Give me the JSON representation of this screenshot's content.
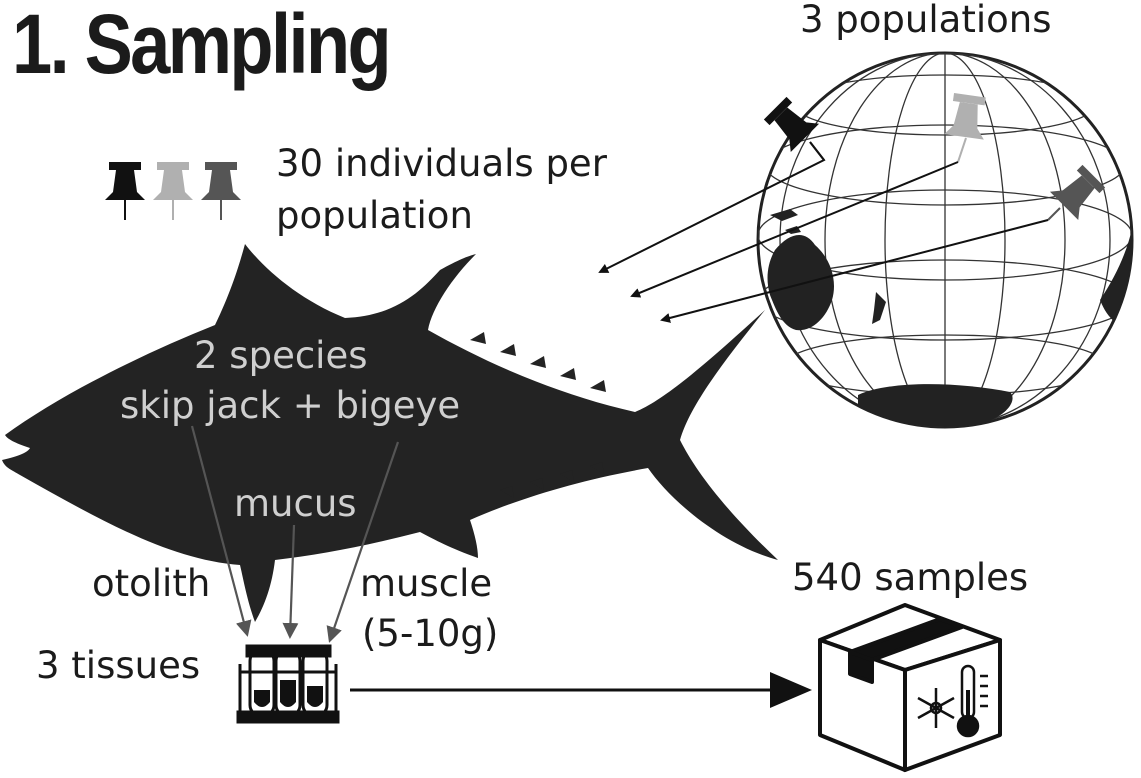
{
  "title": "1. Sampling",
  "populations_label": "3 populations",
  "individuals_label_line1": "30 individuals per",
  "individuals_label_line2": "population",
  "species_label_line1": "2 species",
  "species_label_line2": "skip jack + bigeye",
  "tissue_mucus": "mucus",
  "tissue_otolith": "otolith",
  "tissue_muscle_line1": "muscle",
  "tissue_muscle_line2": "(5-10g)",
  "tissues_label": "3 tissues",
  "samples_label": "540 samples",
  "pin_colors": [
    "#111111",
    "#b0b0b0",
    "#555555"
  ],
  "icons": [
    "push-pin-icon",
    "globe-icon",
    "tuna-fish-icon",
    "test-tube-rack-icon",
    "cold-storage-box-icon",
    "snowflake-icon",
    "thermometer-icon"
  ]
}
